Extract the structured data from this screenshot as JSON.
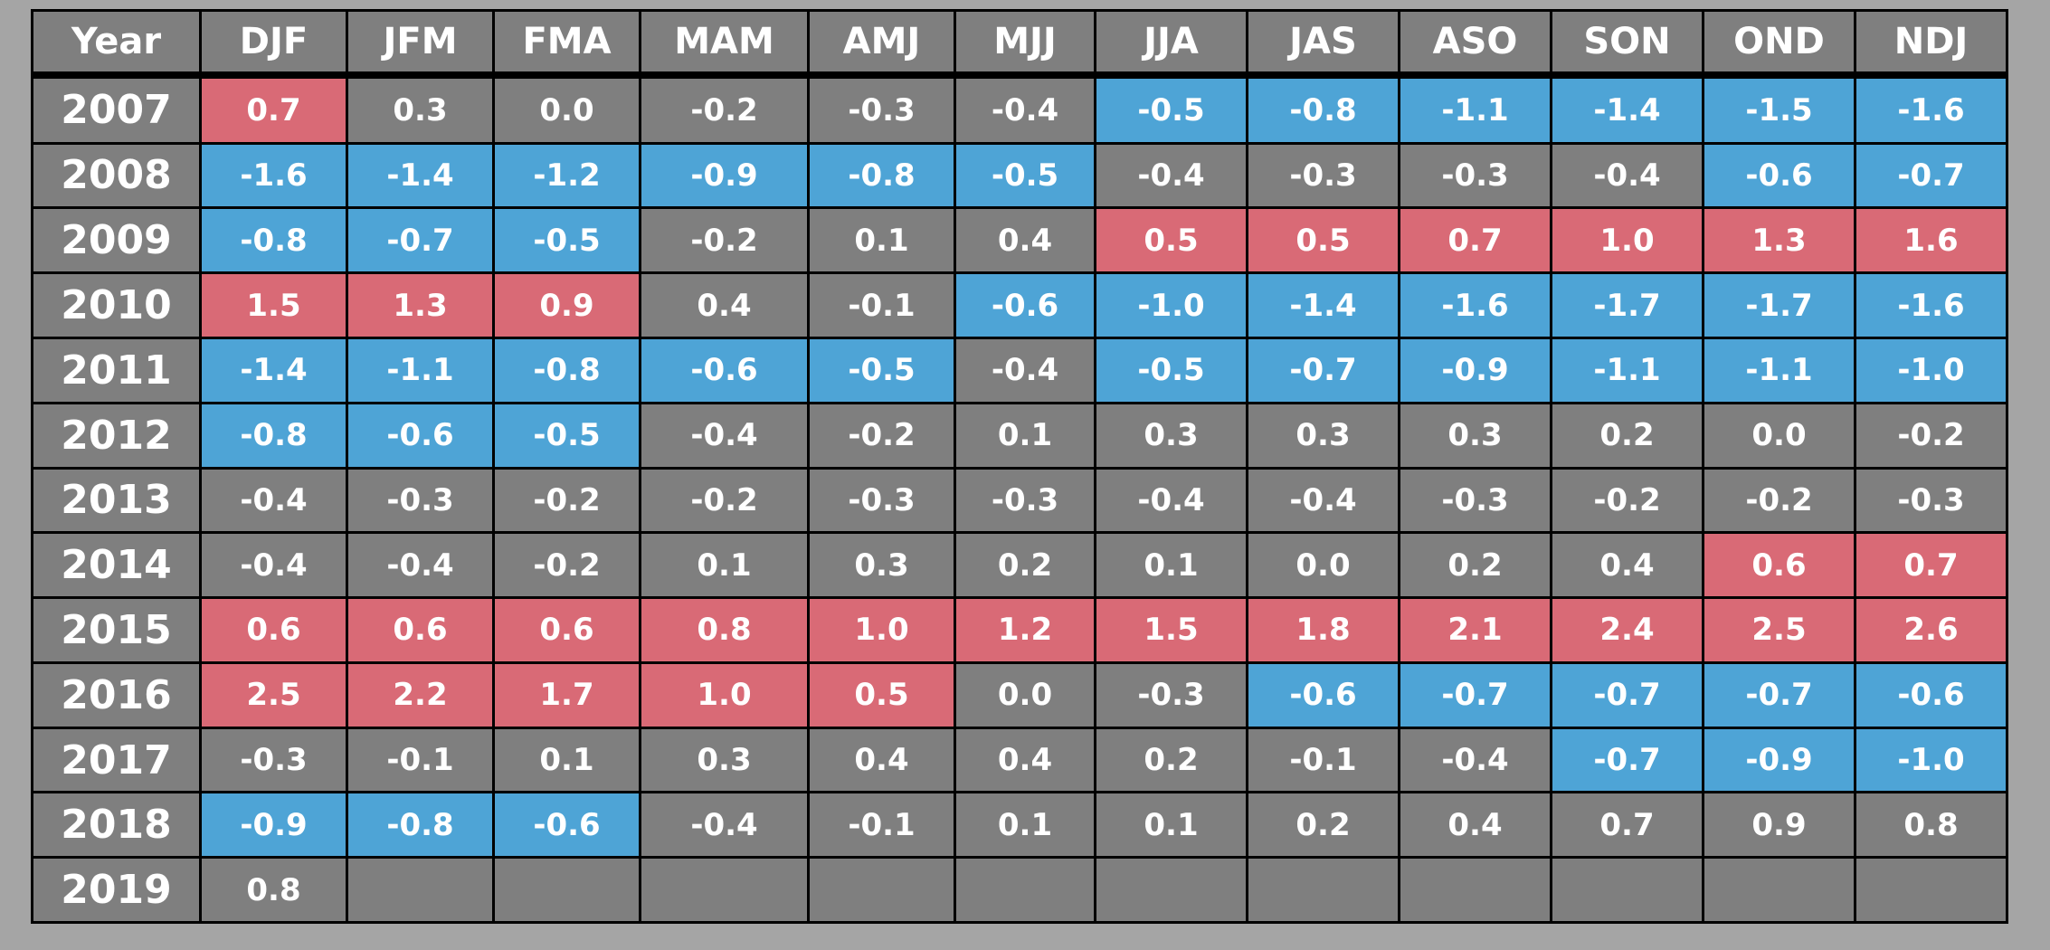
{
  "colors": {
    "background": "#a5a5a5",
    "neutral": "#7f7f7f",
    "el_nino": "#d96a76",
    "la_nina": "#4ea4d6",
    "text": "#ffffff",
    "grid": "#000000"
  },
  "chart_data": {
    "type": "table",
    "columns": [
      "Year",
      "DJF",
      "JFM",
      "FMA",
      "MAM",
      "AMJ",
      "MJJ",
      "JJA",
      "JAS",
      "ASO",
      "SON",
      "OND",
      "NDJ"
    ],
    "rows": [
      {
        "year": "2007",
        "values": [
          "0.7",
          "0.3",
          "0.0",
          "-0.2",
          "-0.3",
          "-0.4",
          "-0.5",
          "-0.8",
          "-1.1",
          "-1.4",
          "-1.5",
          "-1.6"
        ],
        "status": [
          "W",
          "N",
          "N",
          "N",
          "N",
          "N",
          "C",
          "C",
          "C",
          "C",
          "C",
          "C"
        ]
      },
      {
        "year": "2008",
        "values": [
          "-1.6",
          "-1.4",
          "-1.2",
          "-0.9",
          "-0.8",
          "-0.5",
          "-0.4",
          "-0.3",
          "-0.3",
          "-0.4",
          "-0.6",
          "-0.7"
        ],
        "status": [
          "C",
          "C",
          "C",
          "C",
          "C",
          "C",
          "N",
          "N",
          "N",
          "N",
          "C",
          "C"
        ]
      },
      {
        "year": "2009",
        "values": [
          "-0.8",
          "-0.7",
          "-0.5",
          "-0.2",
          "0.1",
          "0.4",
          "0.5",
          "0.5",
          "0.7",
          "1.0",
          "1.3",
          "1.6"
        ],
        "status": [
          "C",
          "C",
          "C",
          "N",
          "N",
          "N",
          "W",
          "W",
          "W",
          "W",
          "W",
          "W"
        ]
      },
      {
        "year": "2010",
        "values": [
          "1.5",
          "1.3",
          "0.9",
          "0.4",
          "-0.1",
          "-0.6",
          "-1.0",
          "-1.4",
          "-1.6",
          "-1.7",
          "-1.7",
          "-1.6"
        ],
        "status": [
          "W",
          "W",
          "W",
          "N",
          "N",
          "C",
          "C",
          "C",
          "C",
          "C",
          "C",
          "C"
        ]
      },
      {
        "year": "2011",
        "values": [
          "-1.4",
          "-1.1",
          "-0.8",
          "-0.6",
          "-0.5",
          "-0.4",
          "-0.5",
          "-0.7",
          "-0.9",
          "-1.1",
          "-1.1",
          "-1.0"
        ],
        "status": [
          "C",
          "C",
          "C",
          "C",
          "C",
          "N",
          "C",
          "C",
          "C",
          "C",
          "C",
          "C"
        ]
      },
      {
        "year": "2012",
        "values": [
          "-0.8",
          "-0.6",
          "-0.5",
          "-0.4",
          "-0.2",
          "0.1",
          "0.3",
          "0.3",
          "0.3",
          "0.2",
          "0.0",
          "-0.2"
        ],
        "status": [
          "C",
          "C",
          "C",
          "N",
          "N",
          "N",
          "N",
          "N",
          "N",
          "N",
          "N",
          "N"
        ]
      },
      {
        "year": "2013",
        "values": [
          "-0.4",
          "-0.3",
          "-0.2",
          "-0.2",
          "-0.3",
          "-0.3",
          "-0.4",
          "-0.4",
          "-0.3",
          "-0.2",
          "-0.2",
          "-0.3"
        ],
        "status": [
          "N",
          "N",
          "N",
          "N",
          "N",
          "N",
          "N",
          "N",
          "N",
          "N",
          "N",
          "N"
        ]
      },
      {
        "year": "2014",
        "values": [
          "-0.4",
          "-0.4",
          "-0.2",
          "0.1",
          "0.3",
          "0.2",
          "0.1",
          "0.0",
          "0.2",
          "0.4",
          "0.6",
          "0.7"
        ],
        "status": [
          "N",
          "N",
          "N",
          "N",
          "N",
          "N",
          "N",
          "N",
          "N",
          "N",
          "W",
          "W"
        ]
      },
      {
        "year": "2015",
        "values": [
          "0.6",
          "0.6",
          "0.6",
          "0.8",
          "1.0",
          "1.2",
          "1.5",
          "1.8",
          "2.1",
          "2.4",
          "2.5",
          "2.6"
        ],
        "status": [
          "W",
          "W",
          "W",
          "W",
          "W",
          "W",
          "W",
          "W",
          "W",
          "W",
          "W",
          "W"
        ]
      },
      {
        "year": "2016",
        "values": [
          "2.5",
          "2.2",
          "1.7",
          "1.0",
          "0.5",
          "0.0",
          "-0.3",
          "-0.6",
          "-0.7",
          "-0.7",
          "-0.7",
          "-0.6"
        ],
        "status": [
          "W",
          "W",
          "W",
          "W",
          "W",
          "N",
          "N",
          "C",
          "C",
          "C",
          "C",
          "C"
        ]
      },
      {
        "year": "2017",
        "values": [
          "-0.3",
          "-0.1",
          "0.1",
          "0.3",
          "0.4",
          "0.4",
          "0.2",
          "-0.1",
          "-0.4",
          "-0.7",
          "-0.9",
          "-1.0"
        ],
        "status": [
          "N",
          "N",
          "N",
          "N",
          "N",
          "N",
          "N",
          "N",
          "N",
          "C",
          "C",
          "C"
        ]
      },
      {
        "year": "2018",
        "values": [
          "-0.9",
          "-0.8",
          "-0.6",
          "-0.4",
          "-0.1",
          "0.1",
          "0.1",
          "0.2",
          "0.4",
          "0.7",
          "0.9",
          "0.8"
        ],
        "status": [
          "C",
          "C",
          "C",
          "N",
          "N",
          "N",
          "N",
          "N",
          "N",
          "N",
          "N",
          "N"
        ]
      },
      {
        "year": "2019",
        "values": [
          "0.8",
          "",
          "",
          "",
          "",
          "",
          "",
          "",
          "",
          "",
          "",
          ""
        ],
        "status": [
          "N",
          "N",
          "N",
          "N",
          "N",
          "N",
          "N",
          "N",
          "N",
          "N",
          "N",
          "N"
        ]
      }
    ]
  }
}
